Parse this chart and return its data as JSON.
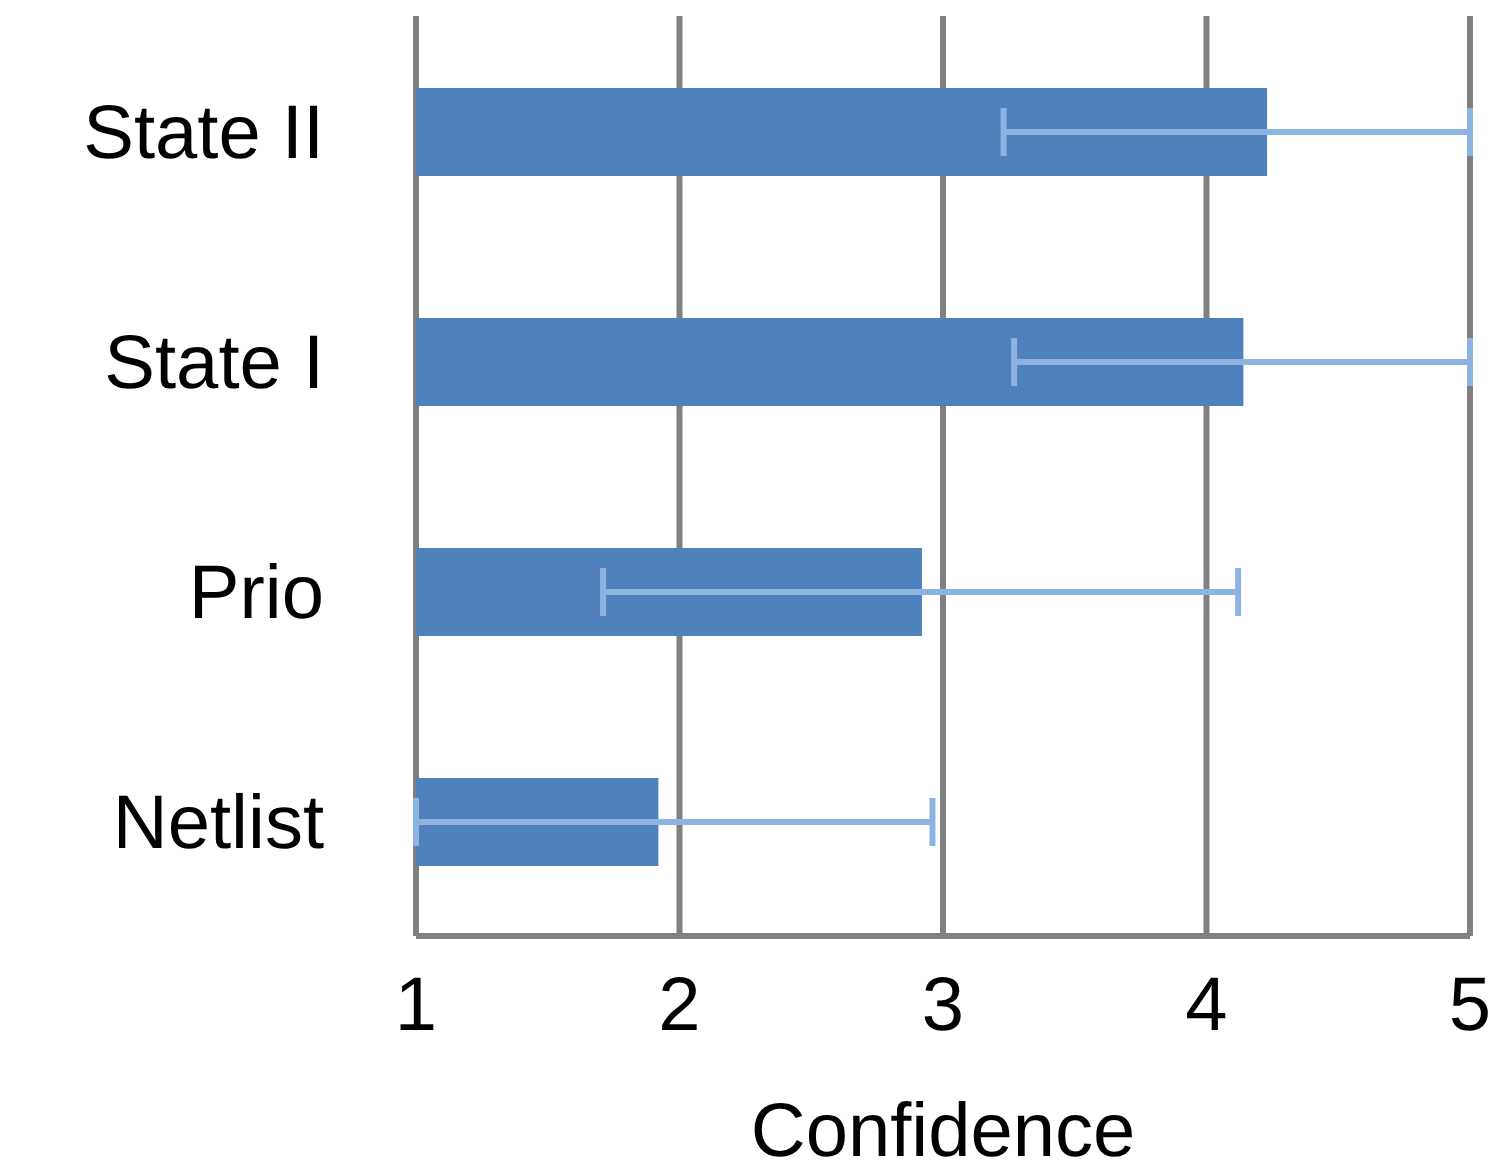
{
  "chart_data": {
    "type": "bar",
    "orientation": "horizontal",
    "xlabel": "Confidence",
    "categories": [
      "State II",
      "State I",
      "Prio",
      "Netlist"
    ],
    "values": [
      4.23,
      4.14,
      2.92,
      1.92
    ],
    "errors": [
      [
        3.23,
        5
      ],
      [
        3.27,
        5
      ],
      [
        1.71,
        4.12
      ],
      [
        1,
        2.96
      ]
    ],
    "color": "#4f81bd",
    "xlim": [
      1,
      5
    ],
    "xticks": [
      1,
      2,
      3,
      4,
      5
    ],
    "grid": "x"
  }
}
